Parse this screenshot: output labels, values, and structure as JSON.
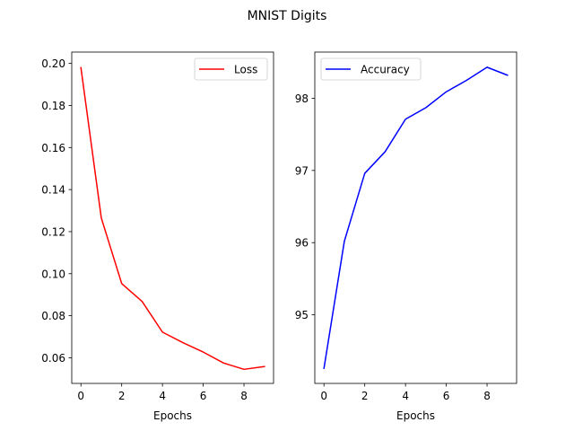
{
  "figure": {
    "suptitle": "MNIST Digits"
  },
  "chart_data": [
    {
      "type": "line",
      "title": "",
      "xlabel": "Epochs",
      "ylabel": "",
      "x": [
        0,
        1,
        2,
        3,
        4,
        5,
        6,
        7,
        8,
        9
      ],
      "series": [
        {
          "name": "Loss",
          "color": "#ff0000",
          "values": [
            0.198,
            0.1265,
            0.0953,
            0.0868,
            0.0722,
            0.0672,
            0.0627,
            0.0575,
            0.0545,
            0.0558
          ]
        }
      ],
      "xlim": [
        -0.45,
        9.45
      ],
      "ylim": [
        0.0478,
        0.2054
      ],
      "xticks": [
        0,
        2,
        4,
        6,
        8
      ],
      "xtick_labels": [
        "0",
        "2",
        "4",
        "6",
        "8"
      ],
      "yticks": [
        0.06,
        0.08,
        0.1,
        0.12,
        0.14,
        0.16,
        0.18,
        0.2
      ],
      "ytick_labels": [
        "0.06",
        "0.08",
        "0.10",
        "0.12",
        "0.14",
        "0.16",
        "0.18",
        "0.20"
      ],
      "grid": false,
      "legend": "upper right"
    },
    {
      "type": "line",
      "title": "",
      "xlabel": "Epochs",
      "ylabel": "",
      "x": [
        0,
        1,
        2,
        3,
        4,
        5,
        6,
        7,
        8,
        9
      ],
      "series": [
        {
          "name": "Accuracy",
          "color": "#0000ff",
          "values": [
            94.26,
            96.02,
            96.96,
            97.26,
            97.71,
            97.87,
            98.09,
            98.25,
            98.43,
            98.32
          ]
        }
      ],
      "xlim": [
        -0.45,
        9.45
      ],
      "ylim": [
        94.05,
        98.64
      ],
      "xticks": [
        0,
        2,
        4,
        6,
        8
      ],
      "xtick_labels": [
        "0",
        "2",
        "4",
        "6",
        "8"
      ],
      "yticks": [
        95,
        96,
        97,
        98
      ],
      "ytick_labels": [
        "95",
        "96",
        "97",
        "98"
      ],
      "grid": false,
      "legend": "upper left"
    }
  ]
}
